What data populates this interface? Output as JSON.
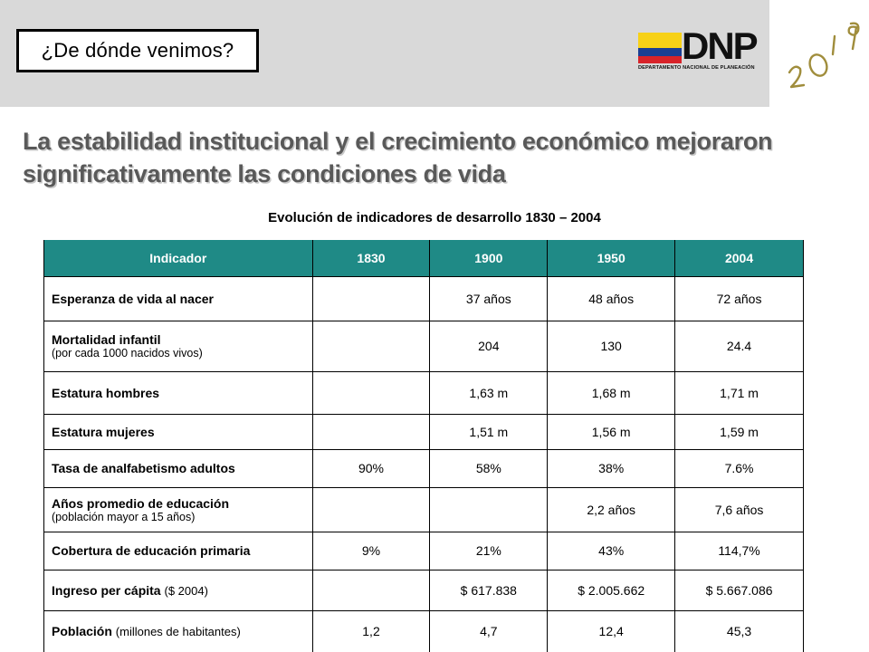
{
  "header": {
    "section_title": "¿De dónde venimos?",
    "logo": {
      "wordmark": "DNP",
      "subtitle": "DEPARTAMENTO NACIONAL DE PLANEACIÓN",
      "flag_colors": [
        "#f7d117",
        "#1b3f94",
        "#d8232a"
      ]
    },
    "year_logo": "2019"
  },
  "headline": "La estabilidad institucional y el crecimiento económico mejoraron significativamente las condiciones de vida",
  "table": {
    "title": "Evolución de indicadores de desarrollo 1830 – 2004",
    "header_color": "#1f8a86",
    "columns": [
      "Indicador",
      "1830",
      "1900",
      "1950",
      "2004"
    ],
    "rows": [
      {
        "label": "Esperanza de vida al nacer",
        "note": "",
        "inline_note": "",
        "values": [
          "",
          "37 años",
          "48 años",
          "72 años"
        ]
      },
      {
        "label": "Mortalidad infantil",
        "note": "(por cada 1000 nacidos vivos)",
        "inline_note": "",
        "values": [
          "",
          "204",
          "130",
          "24.4"
        ]
      },
      {
        "label": "Estatura hombres",
        "note": "",
        "inline_note": "",
        "values": [
          "",
          "1,63 m",
          "1,68 m",
          "1,71 m"
        ]
      },
      {
        "label": "Estatura mujeres",
        "note": "",
        "inline_note": "",
        "values": [
          "",
          "1,51 m",
          "1,56 m",
          "1,59 m"
        ]
      },
      {
        "label": "Tasa de analfabetismo adultos",
        "note": "",
        "inline_note": "",
        "values": [
          "90%",
          "58%",
          "38%",
          "7.6%"
        ]
      },
      {
        "label": "Años promedio de educación",
        "note": "(población mayor a 15 años)",
        "inline_note": "",
        "values": [
          "",
          "",
          "2,2 años",
          "7,6 años"
        ]
      },
      {
        "label": "Cobertura de educación primaria",
        "note": "",
        "inline_note": "",
        "values": [
          "9%",
          "21%",
          "43%",
          "114,7%"
        ]
      },
      {
        "label": "Ingreso per cápita",
        "note": "",
        "inline_note": "($ 2004)",
        "values": [
          "",
          "$ 617.838",
          "$ 2.005.662",
          "$ 5.667.086"
        ]
      },
      {
        "label": "Población",
        "note": "",
        "inline_note": "(millones de habitantes)",
        "values": [
          "1,2",
          "4,7",
          "12,4",
          "45,3"
        ]
      }
    ]
  }
}
